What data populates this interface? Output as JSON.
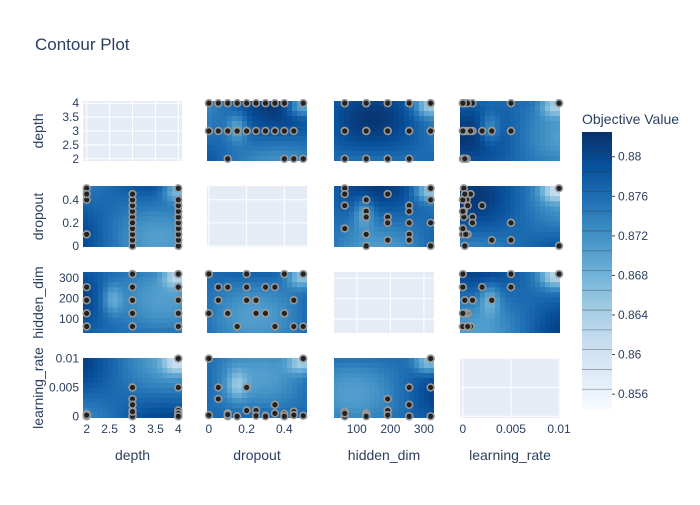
{
  "chart_data": {
    "type": "contour",
    "title": "Contour Plot",
    "params": [
      "depth",
      "dropout",
      "hidden_dim",
      "learning_rate"
    ],
    "axes": {
      "depth": {
        "range": [
          1.92,
          4.08
        ],
        "x_ticks": [
          "2",
          "2.5",
          "3",
          "3.5",
          "4"
        ],
        "x_tick_values": [
          2,
          2.5,
          3,
          3.5,
          4
        ],
        "y_ticks": [
          "2",
          "2.5",
          "3",
          "3.5",
          "4"
        ],
        "y_tick_values": [
          2,
          2.5,
          3,
          3.5,
          4
        ]
      },
      "dropout": {
        "range": [
          -0.01,
          0.52
        ],
        "x_ticks": [
          "0",
          "0.2",
          "0.4"
        ],
        "x_tick_values": [
          0,
          0.2,
          0.4
        ],
        "y_ticks": [
          "0",
          "0.2",
          "0.4"
        ],
        "y_tick_values": [
          0,
          0.2,
          0.4
        ]
      },
      "hidden_dim": {
        "range": [
          32,
          330
        ],
        "x_ticks": [
          "100",
          "200",
          "300"
        ],
        "x_tick_values": [
          100,
          200,
          300
        ],
        "y_ticks": [
          "100",
          "200",
          "300"
        ],
        "y_tick_values": [
          100,
          200,
          300
        ]
      },
      "learning_rate": {
        "range": [
          -0.0003,
          0.0101
        ],
        "x_ticks": [
          "0",
          "0.005",
          "0.01"
        ],
        "x_tick_values": [
          0,
          0.005,
          0.01
        ],
        "y_ticks": [
          "0",
          "0.005",
          "0.01"
        ],
        "y_tick_values": [
          0,
          0.005,
          0.01
        ]
      }
    },
    "trials": [
      {
        "depth": 2,
        "dropout": 0.5,
        "hidden_dim": 64,
        "learning_rate": 0.0001
      },
      {
        "depth": 2,
        "dropout": 0.1,
        "hidden_dim": 256,
        "learning_rate": 0.0
      },
      {
        "depth": 2,
        "dropout": 0.4,
        "hidden_dim": 128,
        "learning_rate": 0.0004
      },
      {
        "depth": 3,
        "dropout": 0.0,
        "hidden_dim": 128,
        "learning_rate": 0.0002
      },
      {
        "depth": 3,
        "dropout": 0.05,
        "hidden_dim": 192,
        "learning_rate": 0.003
      },
      {
        "depth": 3,
        "dropout": 0.1,
        "hidden_dim": 128,
        "learning_rate": 0.0005
      },
      {
        "depth": 3,
        "dropout": 0.15,
        "hidden_dim": 64,
        "learning_rate": 0.0
      },
      {
        "depth": 3,
        "dropout": 0.2,
        "hidden_dim": 256,
        "learning_rate": 0.005
      },
      {
        "depth": 3,
        "dropout": 0.25,
        "hidden_dim": 192,
        "learning_rate": 0.001
      },
      {
        "depth": 3,
        "dropout": 0.3,
        "hidden_dim": 128,
        "learning_rate": 0.0001
      },
      {
        "depth": 3,
        "dropout": 0.35,
        "hidden_dim": 256,
        "learning_rate": 0.002
      },
      {
        "depth": 3,
        "dropout": 0.4,
        "hidden_dim": 320,
        "learning_rate": 0.0
      },
      {
        "depth": 3,
        "dropout": 0.45,
        "hidden_dim": 64,
        "learning_rate": 0.0008
      },
      {
        "depth": 3,
        "dropout": 0.2,
        "hidden_dim": 320,
        "learning_rate": 0.005
      },
      {
        "depth": 4,
        "dropout": 0.0,
        "hidden_dim": 320,
        "learning_rate": 0.01
      },
      {
        "depth": 4,
        "dropout": 0.05,
        "hidden_dim": 256,
        "learning_rate": 0.005
      },
      {
        "depth": 4,
        "dropout": 0.1,
        "hidden_dim": 128,
        "learning_rate": 0.0003
      },
      {
        "depth": 4,
        "dropout": 0.15,
        "hidden_dim": 64,
        "learning_rate": 0.0
      },
      {
        "depth": 4,
        "dropout": 0.2,
        "hidden_dim": 192,
        "learning_rate": 0.001
      },
      {
        "depth": 4,
        "dropout": 0.25,
        "hidden_dim": 128,
        "learning_rate": 0.0001
      },
      {
        "depth": 4,
        "dropout": 0.3,
        "hidden_dim": 256,
        "learning_rate": 0.0
      },
      {
        "depth": 4,
        "dropout": 0.35,
        "hidden_dim": 64,
        "learning_rate": 0.0005
      },
      {
        "depth": 4,
        "dropout": 0.4,
        "hidden_dim": 128,
        "learning_rate": 0.0
      },
      {
        "depth": 4,
        "dropout": 0.5,
        "hidden_dim": 320,
        "learning_rate": 0.01
      },
      {
        "depth": 2,
        "dropout": 0.45,
        "hidden_dim": 192,
        "learning_rate": 0.0002
      }
    ],
    "colorbar": {
      "title": "Objective Value",
      "ticks": [
        "0.856",
        "0.86",
        "0.864",
        "0.868",
        "0.872",
        "0.876",
        "0.88"
      ],
      "tick_values": [
        0.856,
        0.86,
        0.864,
        0.868,
        0.872,
        0.876,
        0.88
      ],
      "range": [
        0.8545,
        0.8825
      ],
      "colorscale": [
        "#f7fbff",
        "#deebf7",
        "#c6dbef",
        "#9ecae1",
        "#6baed6",
        "#4292c6",
        "#2171b5",
        "#08519c",
        "#08306b"
      ]
    },
    "grid": true,
    "diagonal": "empty"
  }
}
